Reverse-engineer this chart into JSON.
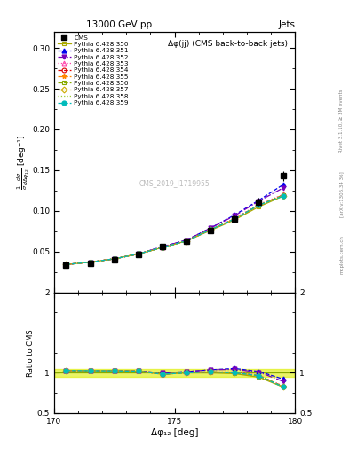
{
  "title_top": "13000 GeV pp",
  "title_right": "Jets",
  "plot_title": "Δφ(jj) (CMS back-to-back jets)",
  "watermark": "CMS_2019_I1719955",
  "rivet_text": "Rivet 3.1.10, ≥ 3M events",
  "arxiv_text": "[arXiv:1306.34 36]",
  "mcplots_text": "mcplots.cern.ch",
  "xlabel": "Δφ₁₂ [deg]",
  "ylabel_ratio": "Ratio to CMS",
  "xlim": [
    170,
    180
  ],
  "ylim_main": [
    0.0,
    0.32
  ],
  "ylim_ratio": [
    0.5,
    2.0
  ],
  "x_data": [
    170.5,
    171.5,
    172.5,
    173.5,
    174.5,
    175.5,
    176.5,
    177.5,
    178.5,
    179.5
  ],
  "cms_y": [
    0.033,
    0.036,
    0.04,
    0.046,
    0.056,
    0.063,
    0.076,
    0.09,
    0.111,
    0.143
  ],
  "cms_yerr": [
    0.002,
    0.002,
    0.002,
    0.002,
    0.003,
    0.003,
    0.003,
    0.004,
    0.005,
    0.006
  ],
  "series": [
    {
      "label": "Pythia 6.428 350",
      "color": "#aaaa00",
      "marker": "s",
      "marker_filled": false,
      "linestyle": "-",
      "y": [
        0.034,
        0.037,
        0.041,
        0.047,
        0.055,
        0.063,
        0.076,
        0.089,
        0.105,
        0.118
      ]
    },
    {
      "label": "Pythia 6.428 351",
      "color": "#0000ee",
      "marker": "^",
      "marker_filled": true,
      "linestyle": "--",
      "y": [
        0.034,
        0.037,
        0.041,
        0.047,
        0.056,
        0.064,
        0.079,
        0.095,
        0.113,
        0.132
      ]
    },
    {
      "label": "Pythia 6.428 352",
      "color": "#7700bb",
      "marker": "v",
      "marker_filled": true,
      "linestyle": "-.",
      "y": [
        0.034,
        0.037,
        0.041,
        0.047,
        0.056,
        0.064,
        0.079,
        0.094,
        0.112,
        0.128
      ]
    },
    {
      "label": "Pythia 6.428 353",
      "color": "#ff44aa",
      "marker": "^",
      "marker_filled": false,
      "linestyle": ":",
      "y": [
        0.034,
        0.037,
        0.041,
        0.047,
        0.055,
        0.063,
        0.077,
        0.091,
        0.108,
        0.12
      ]
    },
    {
      "label": "Pythia 6.428 354",
      "color": "#dd0000",
      "marker": "o",
      "marker_filled": false,
      "linestyle": "--",
      "y": [
        0.034,
        0.037,
        0.041,
        0.047,
        0.055,
        0.063,
        0.077,
        0.09,
        0.107,
        0.119
      ]
    },
    {
      "label": "Pythia 6.428 355",
      "color": "#ff8800",
      "marker": "*",
      "marker_filled": true,
      "linestyle": "--",
      "y": [
        0.034,
        0.037,
        0.041,
        0.047,
        0.055,
        0.063,
        0.077,
        0.09,
        0.107,
        0.119
      ]
    },
    {
      "label": "Pythia 6.428 356",
      "color": "#88aa00",
      "marker": "s",
      "marker_filled": false,
      "linestyle": "--",
      "y": [
        0.034,
        0.037,
        0.041,
        0.047,
        0.055,
        0.063,
        0.077,
        0.09,
        0.107,
        0.119
      ]
    },
    {
      "label": "Pythia 6.428 357",
      "color": "#ccaa00",
      "marker": "D",
      "marker_filled": false,
      "linestyle": "-.",
      "y": [
        0.034,
        0.037,
        0.041,
        0.047,
        0.055,
        0.063,
        0.077,
        0.09,
        0.107,
        0.118
      ]
    },
    {
      "label": "Pythia 6.428 358",
      "color": "#99cc33",
      "marker": null,
      "marker_filled": false,
      "linestyle": ":",
      "y": [
        0.034,
        0.037,
        0.041,
        0.047,
        0.055,
        0.063,
        0.077,
        0.09,
        0.107,
        0.118
      ]
    },
    {
      "label": "Pythia 6.428 359",
      "color": "#00bbbb",
      "marker": "o",
      "marker_filled": true,
      "linestyle": "--",
      "y": [
        0.034,
        0.037,
        0.041,
        0.047,
        0.055,
        0.063,
        0.077,
        0.09,
        0.107,
        0.118
      ]
    }
  ],
  "background_color": "#ffffff"
}
